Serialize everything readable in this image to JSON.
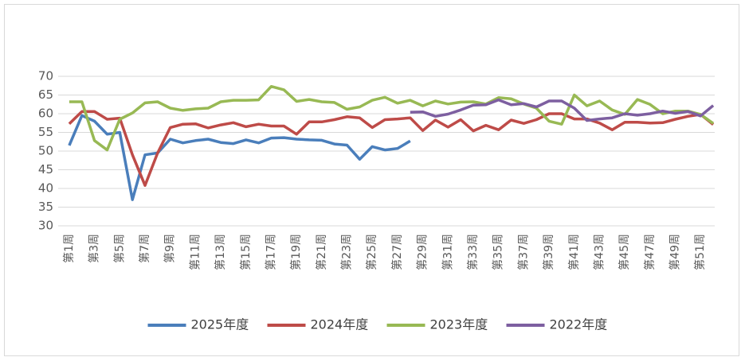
{
  "chart_data": {
    "type": "line",
    "categories": [
      "第1周",
      null,
      "第3周",
      null,
      "第5周",
      null,
      "第7周",
      null,
      "第9周",
      null,
      "第11周",
      null,
      "第13周",
      null,
      "第15周",
      null,
      "第17周",
      null,
      "第19周",
      null,
      "第21周",
      null,
      "第23周",
      null,
      "第25周",
      null,
      "第27周",
      null,
      "第29周",
      null,
      "第31周",
      null,
      "第33周",
      null,
      "第35周",
      null,
      "第37周",
      null,
      "第39周",
      null,
      "第41周",
      null,
      "第43周",
      null,
      "第45周",
      null,
      "第47周",
      null,
      "第49周",
      null,
      "第51周",
      null
    ],
    "ylim": [
      30,
      70
    ],
    "yticks": [
      30,
      35,
      40,
      45,
      50,
      55,
      60,
      65,
      70
    ],
    "grid": true,
    "legend": "bottom",
    "series": [
      {
        "name": "2025年度",
        "color": "#4a7ebb",
        "values": [
          51.5,
          59.5,
          58,
          54.5,
          55,
          37,
          49,
          49.5,
          53.2,
          52.2,
          52.8,
          53.2,
          52.3,
          52,
          53,
          52.2,
          53.5,
          53.6,
          53.2,
          53,
          52.9,
          51.9,
          51.6,
          47.8,
          51.2,
          50.3,
          50.7,
          52.7,
          null,
          null,
          null,
          null,
          null,
          null,
          null,
          null,
          null,
          null,
          null,
          null,
          null,
          null,
          null,
          null,
          null,
          null,
          null,
          null,
          null,
          null,
          null,
          null
        ]
      },
      {
        "name": "2024年度",
        "color": "#be4b48",
        "values": [
          57.3,
          60.6,
          60.6,
          58.5,
          58.8,
          49,
          40.8,
          49.5,
          56.3,
          57.2,
          57.3,
          56.2,
          57,
          57.6,
          56.5,
          57.2,
          56.7,
          56.7,
          54.5,
          57.8,
          57.8,
          58.4,
          59.2,
          58.9,
          56.3,
          58.4,
          58.6,
          58.9,
          55.5,
          58.3,
          56.4,
          58.4,
          55.4,
          56.9,
          55.7,
          58.3,
          57.4,
          58.4,
          60,
          60,
          58.6,
          58.6,
          57.5,
          55.7,
          57.7,
          57.7,
          57.5,
          57.6,
          58.5,
          59.3,
          59.8,
          57.1
        ]
      },
      {
        "name": "2023年度",
        "color": "#98b954",
        "values": [
          63.2,
          63.2,
          52.8,
          50.3,
          58.5,
          60.2,
          62.9,
          63.2,
          61.5,
          60.9,
          61.3,
          61.5,
          63.2,
          63.6,
          63.6,
          63.7,
          67.3,
          66.4,
          63.3,
          63.8,
          63.2,
          63,
          61.2,
          61.8,
          63.6,
          64.4,
          62.8,
          63.6,
          62.1,
          63.4,
          62.6,
          63.1,
          63.2,
          62.6,
          64.3,
          64,
          62.6,
          61.5,
          58,
          57.2,
          65,
          62.1,
          63.4,
          61,
          59.8,
          63.8,
          62.5,
          60,
          60.7,
          60.7,
          59.8,
          57.4
        ]
      },
      {
        "name": "2022年度",
        "color": "#7d5fa0",
        "values": [
          null,
          null,
          null,
          null,
          null,
          null,
          null,
          null,
          null,
          null,
          null,
          null,
          null,
          null,
          null,
          null,
          null,
          null,
          null,
          null,
          null,
          null,
          null,
          null,
          null,
          null,
          null,
          60.4,
          60.5,
          59.3,
          59.9,
          61,
          62.3,
          62.4,
          63.7,
          62.4,
          62.7,
          61.8,
          63.4,
          63.4,
          61.5,
          58.2,
          58.6,
          58.9,
          60,
          59.6,
          60,
          60.7,
          60.1,
          60.6,
          59.4,
          62.2
        ]
      }
    ]
  }
}
